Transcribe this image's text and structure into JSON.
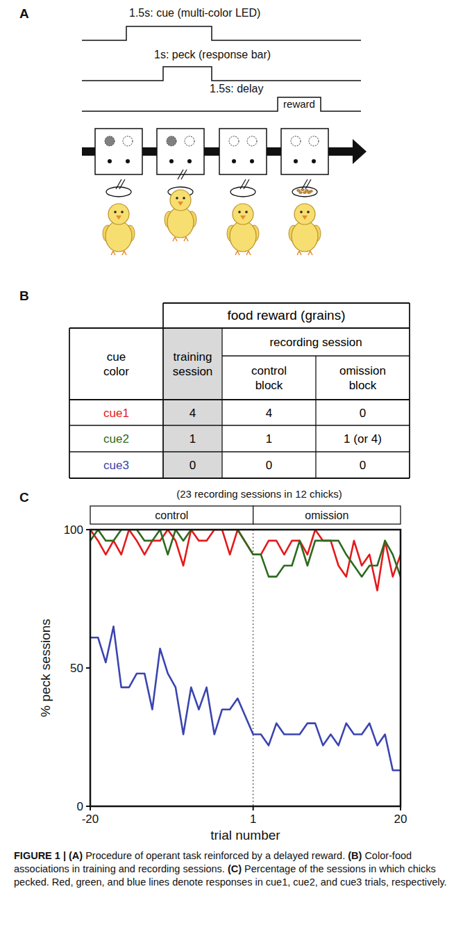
{
  "panel_a": {
    "letter": "A",
    "timeline": [
      {
        "label": "1.5s: cue (multi-color LED)"
      },
      {
        "label": "1s: peck (response bar)"
      },
      {
        "label": "1.5s: delay",
        "end_label": "reward"
      }
    ]
  },
  "panel_b": {
    "letter": "B",
    "table": {
      "corner": "cue color",
      "group": "food reward (grains)",
      "columns": [
        "training session",
        "recording session"
      ],
      "subcolumns": [
        "control block",
        "omission block"
      ],
      "rows": [
        {
          "label": "cue1",
          "color": "#e31a1c",
          "cells": [
            4,
            4,
            0
          ]
        },
        {
          "label": "cue2",
          "color": "#2d6a1f",
          "cells": [
            1,
            1,
            "1 (or 4)"
          ]
        },
        {
          "label": "cue3",
          "color": "#3a44b0",
          "cells": [
            0,
            0,
            0
          ]
        }
      ]
    }
  },
  "panel_c": {
    "letter": "C"
  },
  "chart_data": {
    "type": "line",
    "subtitle": "(23 recording sessions in 12 chicks)",
    "xlabel": "trial number",
    "ylabel": "% peck sessions",
    "x": [
      -20,
      -19,
      -18,
      -17,
      -16,
      -15,
      -14,
      -13,
      -12,
      -11,
      -10,
      -9,
      -8,
      -7,
      -6,
      -5,
      -4,
      -3,
      -2,
      -1,
      1,
      2,
      3,
      4,
      5,
      6,
      7,
      8,
      9,
      10,
      11,
      12,
      13,
      14,
      15,
      16,
      17,
      18,
      19,
      20
    ],
    "series": [
      {
        "color": "#e31a1c",
        "values": [
          100,
          96,
          91,
          96,
          91,
          100,
          96,
          91,
          96,
          96,
          100,
          96,
          87,
          100,
          96,
          96,
          100,
          100,
          91,
          100,
          91,
          91,
          96,
          96,
          91,
          96,
          96,
          91,
          100,
          96,
          96,
          87,
          83,
          96,
          87,
          91,
          78,
          96,
          83,
          91
        ]
      },
      {
        "color": "#2d6a1f",
        "values": [
          96,
          100,
          96,
          96,
          100,
          100,
          100,
          96,
          96,
          100,
          91,
          100,
          96,
          100,
          100,
          100,
          100,
          100,
          100,
          100,
          91,
          91,
          83,
          83,
          87,
          87,
          96,
          87,
          96,
          96,
          96,
          96,
          91,
          87,
          83,
          87,
          87,
          96,
          91,
          83
        ]
      },
      {
        "color": "#3a44b0",
        "values": [
          61,
          61,
          52,
          65,
          43,
          43,
          48,
          48,
          35,
          57,
          48,
          43,
          26,
          43,
          35,
          43,
          26,
          35,
          35,
          39,
          26,
          26,
          22,
          30,
          26,
          26,
          26,
          30,
          30,
          22,
          26,
          22,
          30,
          26,
          26,
          30,
          22,
          26,
          13,
          13
        ]
      }
    ],
    "annotations": [
      {
        "label": "control",
        "x_start": -20,
        "x_end": 1
      },
      {
        "label": "omission",
        "x_start": 1,
        "x_end": 20
      }
    ],
    "xlim": [
      -20,
      20
    ],
    "ylim": [
      0,
      100
    ],
    "xticks": [
      -20,
      1,
      20
    ],
    "yticks": [
      0,
      50,
      100
    ],
    "grid": false
  },
  "caption": {
    "label": "FIGURE 1 |",
    "parts": [
      {
        "letter": "(A)",
        "text": "Procedure of operant task reinforced by a delayed reward."
      },
      {
        "letter": "(B)",
        "text": "Color-food associations in training and recording sessions."
      },
      {
        "letter": "(C)",
        "text": "Percentage of the sessions in which chicks pecked. Red, green, and blue lines denote responses in cue1, cue2, and cue3 trials, respectively."
      }
    ]
  }
}
